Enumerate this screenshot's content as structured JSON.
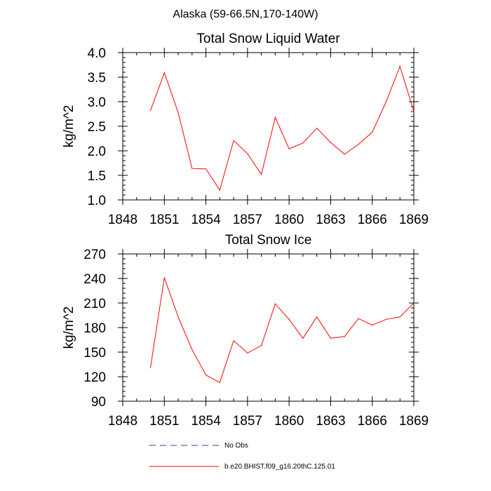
{
  "figure_title": "Alaska (59-66.5N,170-140W)",
  "chart_data": [
    {
      "type": "line",
      "title": "Total Snow Liquid Water",
      "xlabel": "",
      "ylabel": "kg/m^2",
      "xlim": [
        1848,
        1869
      ],
      "ylim": [
        1.0,
        4.0
      ],
      "xticks": [
        1848,
        1851,
        1854,
        1857,
        1860,
        1863,
        1866,
        1869
      ],
      "yticks": [
        "1.0",
        "1.5",
        "2.0",
        "2.5",
        "3.0",
        "3.5",
        "4.0"
      ],
      "series": [
        {
          "name": "b.e20.BHIST.f09_g16.20thC.125.01",
          "color": "#ff0000",
          "x": [
            1850,
            1851,
            1852,
            1853,
            1854,
            1855,
            1856,
            1857,
            1858,
            1859,
            1860,
            1861,
            1862,
            1863,
            1864,
            1865,
            1866,
            1867,
            1868,
            1869
          ],
          "y": [
            2.82,
            3.59,
            2.78,
            1.64,
            1.63,
            1.2,
            2.21,
            1.94,
            1.52,
            2.68,
            2.04,
            2.16,
            2.46,
            2.17,
            1.93,
            2.13,
            2.38,
            3.0,
            3.72,
            2.8
          ]
        }
      ]
    },
    {
      "type": "line",
      "title": "Total Snow Ice",
      "xlabel": "",
      "ylabel": "kg/m^2",
      "xlim": [
        1848,
        1869
      ],
      "ylim": [
        90,
        270
      ],
      "xticks": [
        1848,
        1851,
        1854,
        1857,
        1860,
        1863,
        1866,
        1869
      ],
      "yticks": [
        "90",
        "120",
        "150",
        "180",
        "210",
        "240",
        "270"
      ],
      "series": [
        {
          "name": "b.e20.BHIST.f09_g16.20thC.125.01",
          "color": "#ff0000",
          "x": [
            1850,
            1851,
            1852,
            1853,
            1854,
            1855,
            1856,
            1857,
            1858,
            1859,
            1860,
            1861,
            1862,
            1863,
            1864,
            1865,
            1866,
            1867,
            1868,
            1869
          ],
          "y": [
            131,
            241,
            193,
            153,
            122,
            113,
            164,
            149,
            158,
            209,
            190,
            167,
            193,
            167,
            169,
            191,
            183,
            190,
            193,
            210
          ]
        }
      ]
    }
  ],
  "legend": [
    {
      "label": "No Obs",
      "color": "#3a3a9a",
      "style": "dashed"
    },
    {
      "label": "b.e20.BHIST.f09_g16.20thC.125.01",
      "color": "#ff0000",
      "style": "solid"
    }
  ]
}
